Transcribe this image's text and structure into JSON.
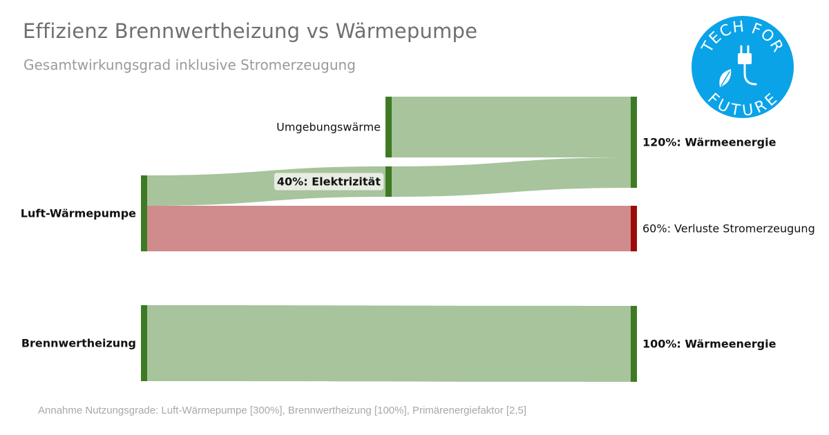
{
  "header": {
    "title": "Effizienz Brennwertheizung vs Wärmepumpe",
    "subtitle": "Gesamtwirkungsgrad inklusive Stromerzeugung"
  },
  "footnote": "Annahme Nutzungsgrade: Luft-Wärmepumpe [300%], Brennwertheizung [100%], Primärenergiefaktor [2,5]",
  "logo": {
    "line1": "TECH FOR",
    "line2": "FUTURE",
    "color": "#0aa3e8",
    "icon": "plug-leaf-icon"
  },
  "chart_data": {
    "type": "sankey",
    "title": "Effizienz Brennwertheizung vs Wärmepumpe",
    "subtitle": "Gesamtwirkungsgrad inklusive Stromerzeugung",
    "colors": {
      "node": "#3e7a24",
      "node_loss": "#9b0b0b",
      "link": "#a7c49c",
      "link_loss": "#d08b8c"
    },
    "nodes": [
      {
        "id": "lwp",
        "label": "Luft-Wärmepumpe",
        "bold": true
      },
      {
        "id": "umg",
        "label": "Umgebungswärme",
        "bold": false
      },
      {
        "id": "elek",
        "label": "40%: Elektrizität",
        "bold": true
      },
      {
        "id": "wae1",
        "label": "120%: Wärmeenergie",
        "bold": true
      },
      {
        "id": "verl",
        "label": "60%: Verluste Stromerzeugung",
        "bold": false,
        "loss": true
      },
      {
        "id": "bwh",
        "label": "Brennwertheizung",
        "bold": true
      },
      {
        "id": "wae2",
        "label": "100%: Wärmeenergie",
        "bold": true
      }
    ],
    "links": [
      {
        "source": "lwp",
        "target": "elek",
        "value": 40
      },
      {
        "source": "lwp",
        "target": "verl",
        "value": 60,
        "loss": true
      },
      {
        "source": "umg",
        "target": "wae1",
        "value": 80
      },
      {
        "source": "elek",
        "target": "wae1",
        "value": 40
      },
      {
        "source": "bwh",
        "target": "wae2",
        "value": 100
      }
    ]
  }
}
